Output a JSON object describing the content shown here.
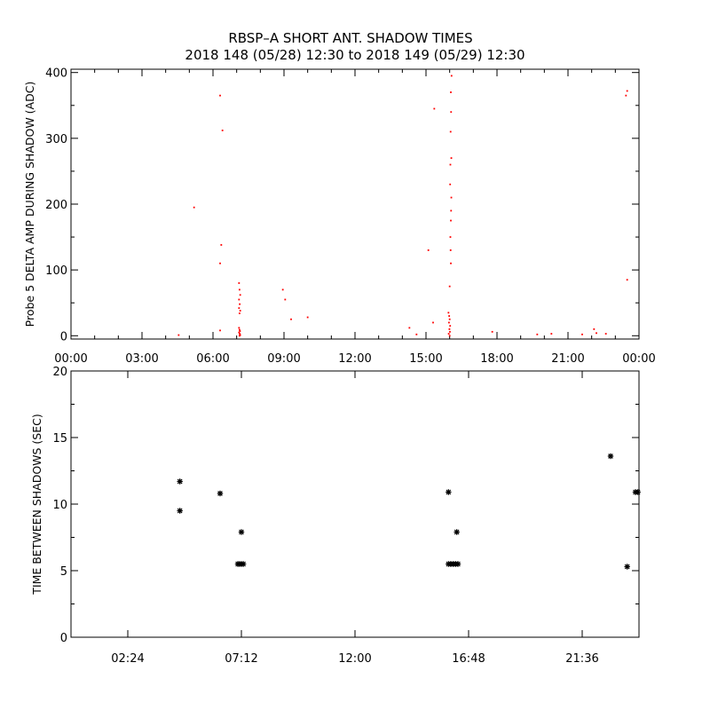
{
  "title_line1": "RBSP–A SHORT ANT. SHADOW TIMES",
  "title_line2": "2018 148 (05/28) 12:30 to 2018 149 (05/29) 12:30",
  "colors": {
    "point_top": "#ff0000",
    "point_bottom": "#000000",
    "axes": "#000000",
    "background": "#ffffff"
  },
  "chart_data": [
    {
      "type": "scatter",
      "title": "",
      "ylabel": "Probe 5 DELTA AMP DURING SHADOW (ADC)",
      "xlabel": "",
      "x_unit": "hours",
      "xlim": [
        0,
        24
      ],
      "ylim": [
        -5,
        405
      ],
      "xtick_values": [
        0,
        3,
        6,
        9,
        12,
        15,
        18,
        21,
        24
      ],
      "xtick_labels": [
        "00:00",
        "03:00",
        "06:00",
        "09:00",
        "12:00",
        "15:00",
        "18:00",
        "21:00",
        "00:00"
      ],
      "ytick_values": [
        0,
        100,
        200,
        300,
        400
      ],
      "ytick_labels": [
        "0",
        "100",
        "200",
        "300",
        "400"
      ],
      "marker": "dot",
      "color": "#ff0000",
      "points": [
        [
          4.55,
          1
        ],
        [
          5.2,
          195
        ],
        [
          6.3,
          365
        ],
        [
          6.35,
          138
        ],
        [
          6.3,
          110
        ],
        [
          6.4,
          312
        ],
        [
          6.3,
          8
        ],
        [
          7.1,
          80
        ],
        [
          7.12,
          70
        ],
        [
          7.15,
          62
        ],
        [
          7.1,
          55
        ],
        [
          7.13,
          48
        ],
        [
          7.1,
          42
        ],
        [
          7.15,
          38
        ],
        [
          7.12,
          34
        ],
        [
          7.1,
          12
        ],
        [
          7.12,
          9
        ],
        [
          7.14,
          7
        ],
        [
          7.1,
          5
        ],
        [
          7.13,
          3
        ],
        [
          7.15,
          1
        ],
        [
          7.12,
          0
        ],
        [
          8.95,
          70
        ],
        [
          9.05,
          55
        ],
        [
          9.3,
          25
        ],
        [
          10.0,
          28
        ],
        [
          14.3,
          12
        ],
        [
          14.6,
          2
        ],
        [
          15.1,
          130
        ],
        [
          15.35,
          345
        ],
        [
          15.3,
          20
        ],
        [
          15.95,
          35
        ],
        [
          15.98,
          30
        ],
        [
          16.0,
          25
        ],
        [
          15.97,
          20
        ],
        [
          16.02,
          15
        ],
        [
          15.99,
          10
        ],
        [
          16.01,
          6
        ],
        [
          15.96,
          3
        ],
        [
          16.0,
          0
        ],
        [
          16.0,
          75
        ],
        [
          16.05,
          110
        ],
        [
          16.03,
          150
        ],
        [
          16.06,
          190
        ],
        [
          16.02,
          230
        ],
        [
          16.07,
          270
        ],
        [
          16.04,
          310
        ],
        [
          16.06,
          340
        ],
        [
          16.05,
          370
        ],
        [
          16.08,
          395
        ],
        [
          16.03,
          260
        ],
        [
          16.07,
          210
        ],
        [
          16.05,
          175
        ],
        [
          16.04,
          130
        ],
        [
          17.8,
          6
        ],
        [
          19.7,
          2
        ],
        [
          20.3,
          3
        ],
        [
          21.6,
          2
        ],
        [
          22.1,
          10
        ],
        [
          22.2,
          4
        ],
        [
          22.6,
          3
        ],
        [
          23.45,
          365
        ],
        [
          23.5,
          372
        ],
        [
          23.5,
          85
        ]
      ]
    },
    {
      "type": "scatter",
      "title": "",
      "ylabel": "TIME BETWEEN SHADOWS (SEC)",
      "xlabel": "",
      "x_unit": "hours",
      "xlim": [
        0,
        24
      ],
      "ylim": [
        0,
        20
      ],
      "xtick_values": [
        2.4,
        7.2,
        12.0,
        16.8,
        21.6
      ],
      "xtick_labels": [
        "02:24",
        "07:12",
        "12:00",
        "16:48",
        "21:36"
      ],
      "ytick_values": [
        0,
        5,
        10,
        15,
        20
      ],
      "ytick_labels": [
        "0",
        "5",
        "10",
        "15",
        "20"
      ],
      "marker": "asterisk",
      "color": "#000000",
      "points": [
        [
          4.6,
          11.7
        ],
        [
          4.6,
          9.5
        ],
        [
          6.3,
          10.8
        ],
        [
          7.2,
          7.9
        ],
        [
          7.05,
          5.5
        ],
        [
          7.12,
          5.5
        ],
        [
          7.2,
          5.5
        ],
        [
          7.28,
          5.5
        ],
        [
          15.95,
          10.9
        ],
        [
          16.3,
          7.9
        ],
        [
          15.95,
          5.5
        ],
        [
          16.05,
          5.5
        ],
        [
          16.15,
          5.5
        ],
        [
          16.25,
          5.5
        ],
        [
          16.35,
          5.5
        ],
        [
          22.8,
          13.6
        ],
        [
          23.5,
          5.3
        ],
        [
          23.85,
          10.9
        ],
        [
          23.95,
          10.9
        ]
      ]
    }
  ]
}
